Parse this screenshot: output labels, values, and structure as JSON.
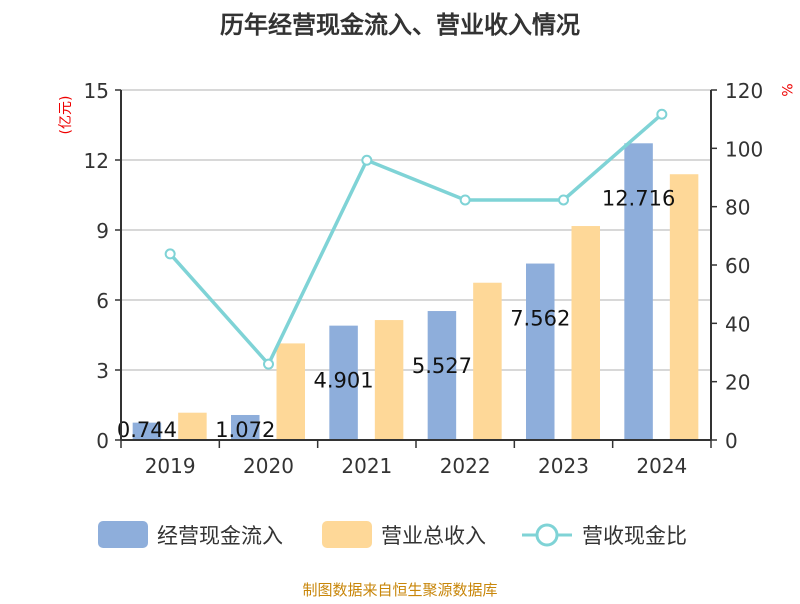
{
  "chart_data": {
    "type": "bar",
    "title": "历年经营现金流入、营业收入情况",
    "categories": [
      "2019",
      "2020",
      "2021",
      "2022",
      "2023",
      "2024"
    ],
    "ylabel_left": "(亿元)",
    "ylabel_right": "%",
    "ylim_left": [
      0,
      15
    ],
    "yticks_left": [
      0,
      3,
      6,
      9,
      12,
      15
    ],
    "ylim_right": [
      0,
      120
    ],
    "yticks_right": [
      0,
      20,
      40,
      60,
      80,
      100,
      120
    ],
    "grid": true,
    "legend_position": "bottom",
    "series": [
      {
        "name": "经营现金流入",
        "type": "bar",
        "axis": "left",
        "color": "#8eaedb",
        "values": [
          0.744,
          1.072,
          4.901,
          5.527,
          7.562,
          12.716
        ],
        "labels": [
          "0.744",
          "1.072",
          "4.901",
          "5.527",
          "7.562",
          "12.716"
        ]
      },
      {
        "name": "营业总收入",
        "type": "bar",
        "axis": "left",
        "color": "#fed898",
        "values": [
          1.17,
          4.14,
          5.14,
          6.74,
          9.17,
          11.39
        ]
      },
      {
        "name": "营收现金比",
        "type": "line",
        "axis": "right",
        "color": "#7fd3d6",
        "values": [
          63.8,
          26.0,
          95.9,
          82.3,
          82.3,
          111.7
        ]
      }
    ]
  },
  "footer": "制图数据来自恒生聚源数据库"
}
